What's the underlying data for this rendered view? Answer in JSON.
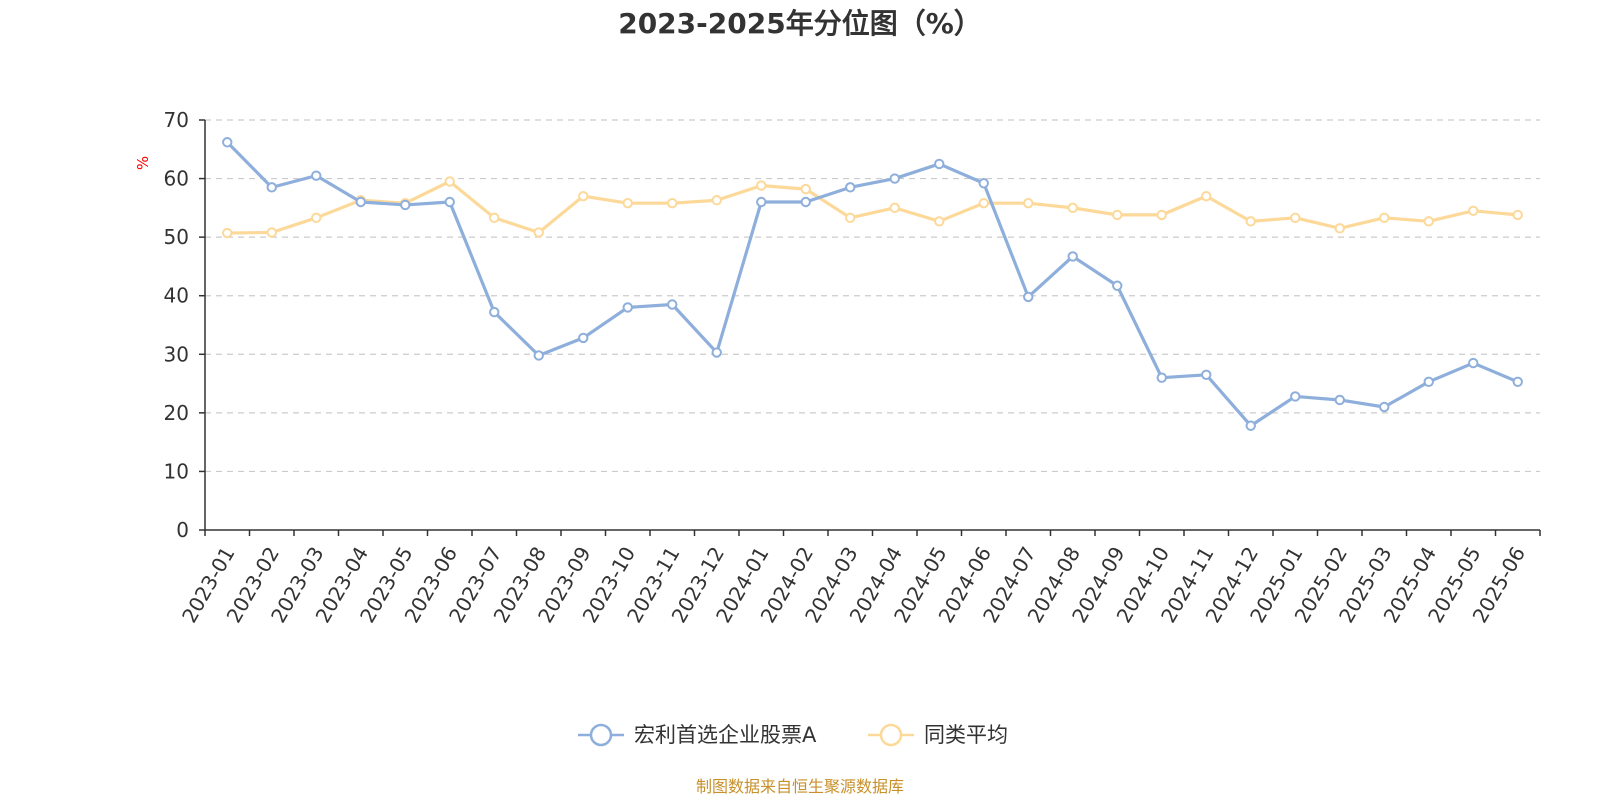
{
  "title": "2023-2025年分位图（%）",
  "source": "制图数据来自恒生聚源数据库",
  "colors": {
    "series_0": "#8eaedb",
    "series_1": "#fcd999",
    "grid": "#cccccc",
    "axis": "#333333",
    "unit": "#ff0000",
    "source": "#c8902a"
  },
  "chart_data": {
    "type": "line",
    "title": "2023-2025年分位图（%）",
    "ylabel": "%",
    "xlabel": "",
    "ylim": [
      0,
      70
    ],
    "yticks": [
      0,
      10,
      20,
      30,
      40,
      50,
      60,
      70
    ],
    "grid": true,
    "legend_position": "bottom-center",
    "categories": [
      "2023-01",
      "2023-02",
      "2023-03",
      "2023-04",
      "2023-05",
      "2023-06",
      "2023-07",
      "2023-08",
      "2023-09",
      "2023-10",
      "2023-11",
      "2023-12",
      "2024-01",
      "2024-02",
      "2024-03",
      "2024-04",
      "2024-05",
      "2024-06",
      "2024-07",
      "2024-08",
      "2024-09",
      "2024-10",
      "2024-11",
      "2024-12",
      "2025-01",
      "2025-02",
      "2025-03",
      "2025-04",
      "2025-05",
      "2025-06"
    ],
    "series": [
      {
        "name": "宏利首选企业股票A",
        "values": [
          66.2,
          58.5,
          60.5,
          56.0,
          55.5,
          56.0,
          37.2,
          29.8,
          32.8,
          38.0,
          38.5,
          30.3,
          56.0,
          56.0,
          58.5,
          60.0,
          62.5,
          59.2,
          39.8,
          46.7,
          41.7,
          26.0,
          26.5,
          17.8,
          22.8,
          22.2,
          21.0,
          25.3,
          28.5,
          25.3
        ]
      },
      {
        "name": "同类平均",
        "values": [
          50.7,
          50.8,
          53.3,
          56.3,
          55.8,
          59.5,
          53.3,
          50.8,
          57.0,
          55.8,
          55.8,
          56.3,
          58.8,
          58.2,
          53.3,
          55.0,
          52.7,
          55.8,
          55.8,
          55.0,
          53.8,
          53.8,
          57.0,
          52.7,
          53.3,
          51.5,
          53.3,
          52.7,
          54.5,
          53.8
        ]
      }
    ]
  }
}
